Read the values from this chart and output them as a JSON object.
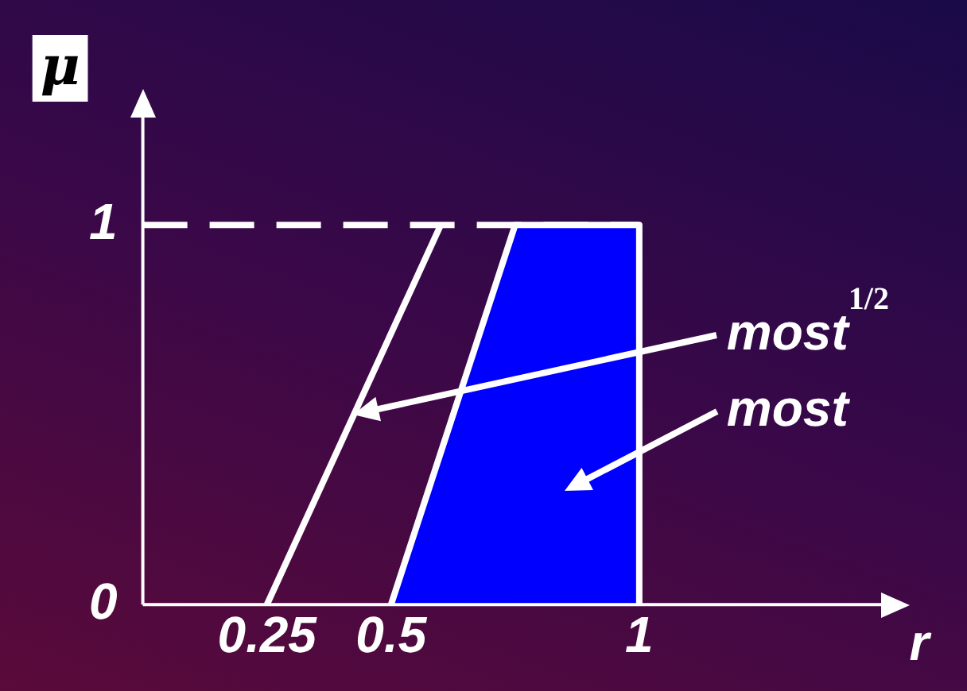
{
  "chart_data": {
    "type": "line",
    "xlabel": "r",
    "ylabel": "μ",
    "xlim": [
      0,
      1.5
    ],
    "ylim": [
      0,
      1.3
    ],
    "xticks": [
      0.25,
      0.5,
      1
    ],
    "yticks": [
      0,
      1
    ],
    "grid": false,
    "legend": false,
    "marker": "none",
    "series": [
      {
        "type": "area",
        "name": "most",
        "color": "#0000ff",
        "x": [
          0.5,
          0.75,
          1,
          1
        ],
        "values": [
          0,
          1,
          1,
          0
        ]
      },
      {
        "name": "most$^{1/2}$",
        "color": "#ffffff",
        "x": [
          0.25,
          0.6
        ],
        "values": [
          0,
          1
        ]
      }
    ],
    "ref_lines": [
      {
        "axis": "y",
        "value": 1,
        "color": "#ffffff",
        "line_style": "dashed"
      }
    ]
  }
}
